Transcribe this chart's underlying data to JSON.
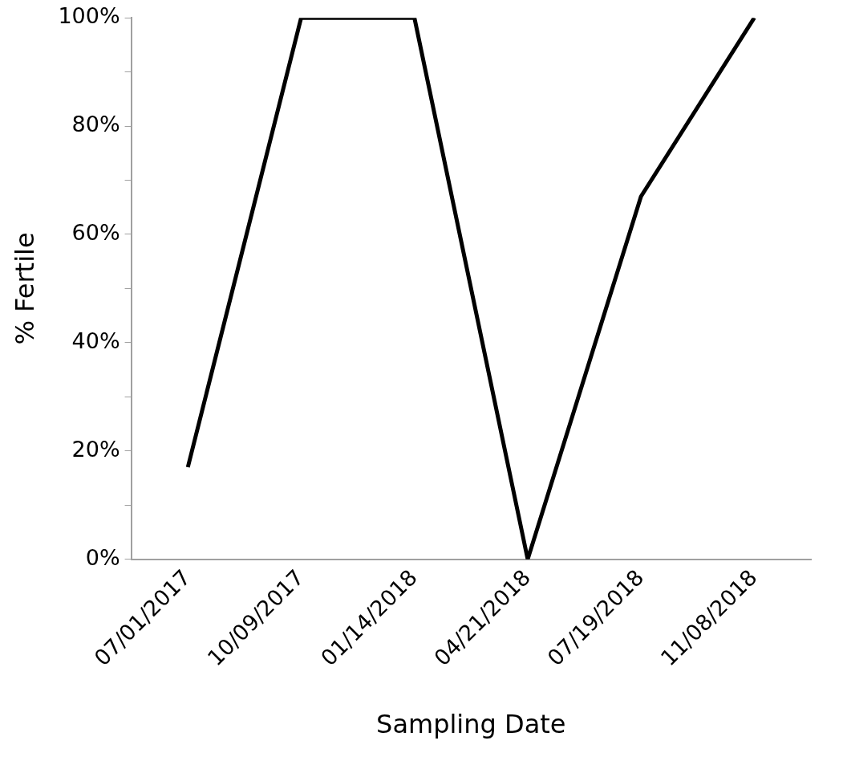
{
  "chart_data": {
    "type": "line",
    "xlabel": "Sampling Date",
    "ylabel": "% Fertile",
    "categories": [
      "07/01/2017",
      "10/09/2017",
      "01/14/2018",
      "04/21/2018",
      "07/19/2018",
      "11/08/2018"
    ],
    "series": [
      {
        "color": "#000000",
        "values": [
          17,
          100,
          100,
          0,
          67,
          100
        ]
      }
    ],
    "ylim": [
      0,
      100
    ],
    "yticks": [
      {
        "value": 0,
        "label": "0%"
      },
      {
        "value": 10,
        "label": null
      },
      {
        "value": 20,
        "label": "20%"
      },
      {
        "value": 30,
        "label": null
      },
      {
        "value": 40,
        "label": "40%"
      },
      {
        "value": 50,
        "label": null
      },
      {
        "value": 60,
        "label": "60%"
      },
      {
        "value": 70,
        "label": null
      },
      {
        "value": 80,
        "label": "80%"
      },
      {
        "value": 90,
        "label": null
      },
      {
        "value": 100,
        "label": "100%"
      }
    ],
    "grid": false,
    "legend": false,
    "marker": "none",
    "line_style": "solid"
  }
}
